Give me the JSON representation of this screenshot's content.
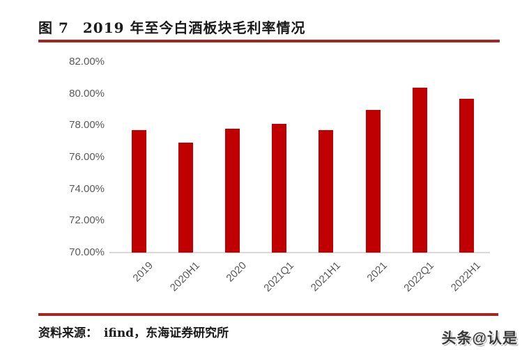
{
  "header": {
    "figure_label": "图 7",
    "title": "2019 年至今白酒板块毛利率情况"
  },
  "chart_data": {
    "type": "bar",
    "title": "2019 年至今白酒板块毛利率情况",
    "categories": [
      "2019",
      "2020H1",
      "2020",
      "2021Q1",
      "2021H1",
      "2021",
      "2022Q1",
      "2022H1"
    ],
    "values": [
      77.7,
      76.9,
      77.8,
      78.1,
      77.7,
      79.0,
      80.4,
      79.7
    ],
    "unit": "%",
    "ylim": [
      70,
      82
    ],
    "ytick_step": 2,
    "ytick_labels": [
      "82.00%",
      "80.00%",
      "78.00%",
      "76.00%",
      "74.00%",
      "72.00%",
      "70.00%"
    ],
    "xlabel": "",
    "ylabel": "",
    "grid": false,
    "legend": "none",
    "bar_color": "#c00000"
  },
  "footer": {
    "source_label": "资料来源：",
    "source_value": "ifind，东海证券研究所"
  },
  "watermark": "头条@认是",
  "colors": {
    "accent_line": "#a62422",
    "bar": "#c00000",
    "axis_text": "#595959",
    "axis_line": "#d9d9d9"
  }
}
